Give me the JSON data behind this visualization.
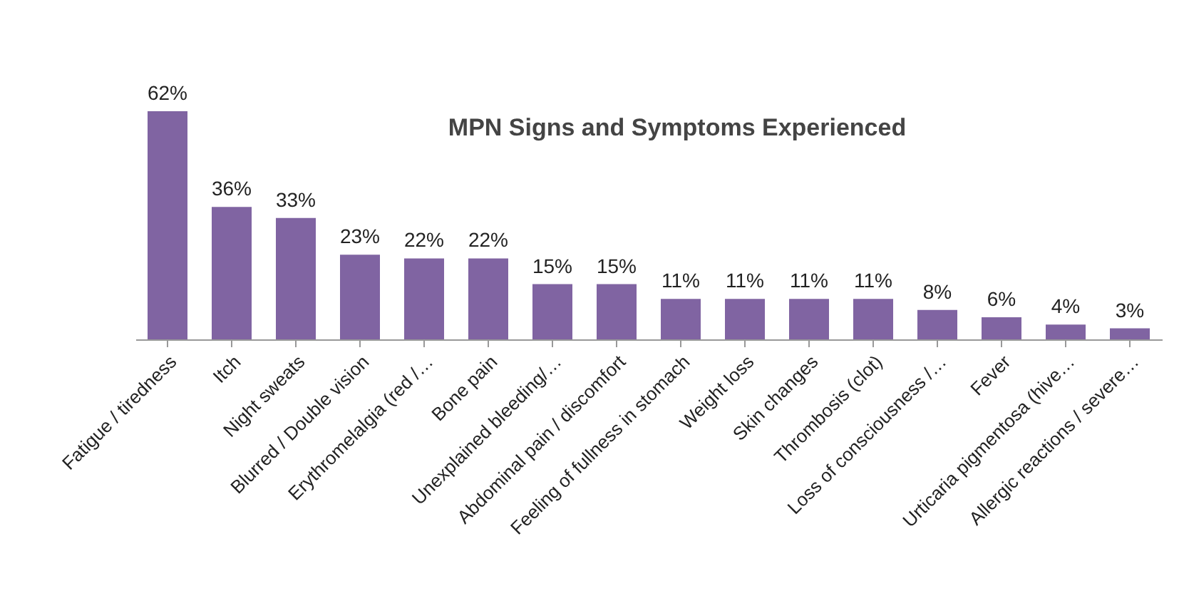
{
  "chart_data": {
    "type": "bar",
    "title": "MPN Signs and Symptoms  Experienced",
    "categories": [
      "Fatigue / tiredness",
      "Itch",
      "Night sweats",
      "Blurred / Double vision",
      "Erythromelalgia (red /…",
      "Bone pain",
      "Unexplained bleeding/…",
      "Abdominal pain / discomfort",
      "Feeling of fullness in stomach",
      "Weight loss",
      "Skin changes",
      "Thrombosis (clot)",
      "Loss of consciousness /…",
      "Fever",
      "Urticaria pigmentosa (hive…",
      "Allergic reactions / severe…"
    ],
    "values": [
      62,
      36,
      33,
      23,
      22,
      22,
      15,
      15,
      11,
      11,
      11,
      11,
      8,
      6,
      4,
      3
    ],
    "value_labels": [
      "62%",
      "36%",
      "33%",
      "23%",
      "22%",
      "22%",
      "15%",
      "15%",
      "11%",
      "11%",
      "11%",
      "11%",
      "8%",
      "6%",
      "4%",
      "3%"
    ],
    "color": "#8064a2"
  }
}
